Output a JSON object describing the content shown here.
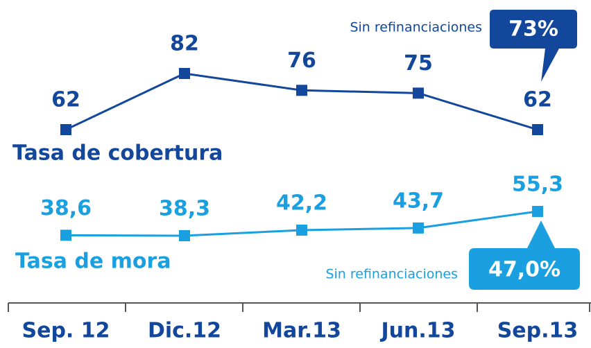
{
  "chart_data": {
    "type": "line",
    "categories": [
      "Sep. 12",
      "Dic.12",
      "Mar.13",
      "Jun.13",
      "Sep.13"
    ],
    "series": [
      {
        "name": "Tasa de cobertura",
        "color": "#12479b",
        "values": [
          62,
          82,
          76,
          75,
          62
        ],
        "value_labels": [
          "62",
          "82",
          "76",
          "75",
          "62"
        ]
      },
      {
        "name": "Tasa de mora",
        "color": "#1aa0e0",
        "values": [
          38.6,
          38.3,
          42.2,
          43.7,
          55.3
        ],
        "value_labels": [
          "38,6",
          "38,3",
          "42,2",
          "43,7",
          "55,3"
        ]
      }
    ],
    "annotations": [
      {
        "text": "Sin refinanciaciones",
        "value": 73,
        "value_label": "73%"
      },
      {
        "text": "Sin refinanciaciones",
        "value": 47.0,
        "value_label": "47,0%"
      }
    ]
  }
}
